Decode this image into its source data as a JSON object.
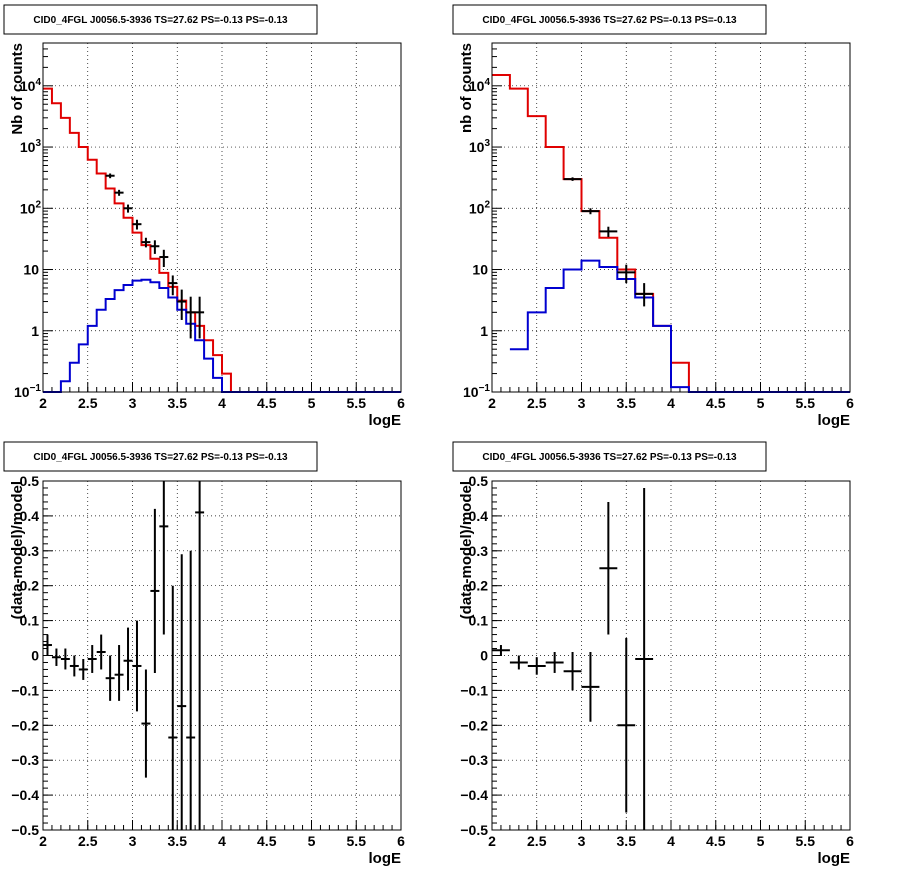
{
  "chart_data": [
    {
      "type": "line",
      "title": "CID0_4FGL J0056.5-3936 TS=27.62 PS=-0.13 PS=-0.13",
      "xlabel": "logE",
      "ylabel": "Nb of counts",
      "xlim": [
        2,
        6
      ],
      "ylim": [
        0.1,
        50000
      ],
      "yscale": "log",
      "grid": true,
      "xticks": [
        "2",
        "2.5",
        "3",
        "3.5",
        "4",
        "4.5",
        "5",
        "5.5",
        "6"
      ],
      "yticks": [
        {
          "v": 0.1,
          "t": "10",
          "sup": "−1"
        },
        {
          "v": 1,
          "t": "1",
          "sup": ""
        },
        {
          "v": 10,
          "t": "10",
          "sup": ""
        },
        {
          "v": 100,
          "t": "10",
          "sup": "2"
        },
        {
          "v": 1000,
          "t": "10",
          "sup": "3"
        },
        {
          "v": 10000,
          "t": "10",
          "sup": "4"
        }
      ],
      "series": [
        {
          "style": "step",
          "color": "#e00000",
          "edges": [
            2.0,
            2.1,
            2.2,
            2.3,
            2.4,
            2.5,
            2.6,
            2.7,
            2.8,
            2.9,
            3.0,
            3.1,
            3.2,
            3.3,
            3.4,
            3.5,
            3.6,
            3.7,
            3.8,
            3.9,
            4.0,
            4.1,
            4.2
          ],
          "values": [
            9000,
            5200,
            3000,
            1700,
            1000,
            620,
            370,
            210,
            120,
            70,
            40,
            25,
            15,
            8.8,
            5.2,
            3.1,
            2.0,
            1.2,
            0.7,
            0.4,
            0.2,
            0.1
          ]
        },
        {
          "style": "step",
          "color": "#0000d0",
          "edges": [
            2.0,
            2.1,
            2.2,
            2.3,
            2.4,
            2.5,
            2.6,
            2.7,
            2.8,
            2.9,
            3.0,
            3.1,
            3.2,
            3.3,
            3.4,
            3.5,
            3.6,
            3.7,
            3.8,
            3.9,
            4.0,
            4.1,
            4.2,
            6.0
          ],
          "values": [
            0.03,
            0.1,
            0.15,
            0.3,
            0.6,
            1.2,
            2.2,
            3.3,
            4.6,
            5.6,
            6.6,
            6.8,
            6.2,
            5.0,
            3.5,
            2.2,
            1.3,
            0.7,
            0.35,
            0.17,
            0.1,
            0.1,
            0.1
          ]
        },
        {
          "style": "errorbar",
          "color": "#000000",
          "x": [
            2.75,
            2.85,
            2.95,
            3.05,
            3.15,
            3.25,
            3.35,
            3.45,
            3.55,
            3.65,
            3.75
          ],
          "y": [
            340,
            180,
            100,
            55,
            28,
            24,
            16,
            6,
            3,
            2,
            2
          ],
          "xerr": [
            0.05,
            0.05,
            0.05,
            0.05,
            0.05,
            0.05,
            0.05,
            0.05,
            0.05,
            0.05,
            0.05
          ],
          "ylo": [
            310,
            160,
            85,
            45,
            23,
            18,
            11,
            3.8,
            1.5,
            0.75,
            0.75
          ],
          "yhi": [
            370,
            200,
            115,
            65,
            33,
            30,
            21,
            8,
            4.7,
            3.6,
            3.6
          ]
        }
      ]
    },
    {
      "type": "line",
      "title": "CID0_4FGL J0056.5-3936 TS=27.62 PS=-0.13 PS=-0.13",
      "xlabel": "logE",
      "ylabel": "nb of counts",
      "xlim": [
        2,
        6
      ],
      "ylim": [
        0.1,
        50000
      ],
      "yscale": "log",
      "grid": true,
      "xticks": [
        "2",
        "2.5",
        "3",
        "3.5",
        "4",
        "4.5",
        "5",
        "5.5",
        "6"
      ],
      "yticks": [
        {
          "v": 0.1,
          "t": "10",
          "sup": "−1"
        },
        {
          "v": 1,
          "t": "1",
          "sup": ""
        },
        {
          "v": 10,
          "t": "10",
          "sup": ""
        },
        {
          "v": 100,
          "t": "10",
          "sup": "2"
        },
        {
          "v": 1000,
          "t": "10",
          "sup": "3"
        },
        {
          "v": 10000,
          "t": "10",
          "sup": "4"
        }
      ],
      "series": [
        {
          "style": "step",
          "color": "#e00000",
          "edges": [
            2.0,
            2.2,
            2.4,
            2.6,
            2.8,
            3.0,
            3.2,
            3.4,
            3.6,
            3.8,
            4.0,
            4.2
          ],
          "values": [
            15000,
            9000,
            3200,
            1000,
            300,
            90,
            33,
            10,
            4,
            1.2,
            0.3
          ]
        },
        {
          "style": "step",
          "color": "#0000d0",
          "edges": [
            2.2,
            2.4,
            2.6,
            2.8,
            3.0,
            3.2,
            3.4,
            3.6,
            3.8,
            4.0,
            4.2,
            6.0
          ],
          "values": [
            0.5,
            2,
            5,
            10,
            14,
            11,
            7,
            3.5,
            1.2,
            0.12,
            0.1
          ]
        },
        {
          "style": "errorbar",
          "color": "#000000",
          "x": [
            2.9,
            3.1,
            3.3,
            3.5,
            3.7
          ],
          "y": [
            300,
            90,
            42,
            9,
            4
          ],
          "xerr": [
            0.1,
            0.1,
            0.1,
            0.1,
            0.1
          ],
          "ylo": [
            280,
            80,
            34,
            6,
            2.5
          ],
          "yhi": [
            320,
            100,
            50,
            12,
            6
          ]
        }
      ]
    },
    {
      "type": "scatter",
      "title": "CID0_4FGL J0056.5-3936 TS=27.62 PS=-0.13 PS=-0.13",
      "xlabel": "logE",
      "ylabel": "(data-model)/model",
      "xlim": [
        2,
        6
      ],
      "ylim": [
        -0.5,
        0.5
      ],
      "grid": true,
      "xticks": [
        "2",
        "2.5",
        "3",
        "3.5",
        "4",
        "4.5",
        "5",
        "5.5",
        "6"
      ],
      "yticks": [
        {
          "v": -0.5,
          "t": "−0.5"
        },
        {
          "v": -0.4,
          "t": "−0.4"
        },
        {
          "v": -0.3,
          "t": "−0.3"
        },
        {
          "v": -0.2,
          "t": "−0.2"
        },
        {
          "v": -0.1,
          "t": "−0.1"
        },
        {
          "v": 0,
          "t": "0"
        },
        {
          "v": 0.1,
          "t": "0.1"
        },
        {
          "v": 0.2,
          "t": "0.2"
        },
        {
          "v": 0.3,
          "t": "0.3"
        },
        {
          "v": 0.4,
          "t": "0.4"
        },
        {
          "v": 0.5,
          "t": "0.5"
        }
      ],
      "series": [
        {
          "style": "errorbar",
          "color": "#000000",
          "x": [
            2.05,
            2.15,
            2.25,
            2.35,
            2.45,
            2.55,
            2.65,
            2.75,
            2.85,
            2.95,
            3.05,
            3.15,
            3.25,
            3.35,
            3.45,
            3.55,
            3.65,
            3.75
          ],
          "y": [
            0.03,
            -0.005,
            -0.01,
            -0.03,
            -0.04,
            -0.01,
            0.01,
            -0.065,
            -0.055,
            -0.015,
            -0.03,
            -0.195,
            0.185,
            0.37,
            -0.235,
            -0.145,
            -0.235,
            0.41
          ],
          "xerr": [
            0.05,
            0.05,
            0.05,
            0.05,
            0.05,
            0.05,
            0.05,
            0.05,
            0.05,
            0.05,
            0.05,
            0.05,
            0.05,
            0.05,
            0.05,
            0.05,
            0.05,
            0.05
          ],
          "ylo": [
            0.0,
            -0.03,
            -0.04,
            -0.06,
            -0.07,
            -0.05,
            -0.04,
            -0.13,
            -0.13,
            -0.1,
            -0.16,
            -0.35,
            -0.05,
            0.06,
            -0.55,
            -0.55,
            -0.55,
            -0.55
          ],
          "yhi": [
            0.06,
            0.02,
            0.02,
            0.0,
            -0.01,
            0.03,
            0.06,
            0.0,
            0.03,
            0.08,
            0.1,
            -0.04,
            0.42,
            0.55,
            0.2,
            0.29,
            0.3,
            0.55
          ]
        }
      ]
    },
    {
      "type": "scatter",
      "title": "CID0_4FGL J0056.5-3936 TS=27.62 PS=-0.13 PS=-0.13",
      "xlabel": "logE",
      "ylabel": "(data-model)/model",
      "xlim": [
        2,
        6
      ],
      "ylim": [
        -0.5,
        0.5
      ],
      "grid": true,
      "xticks": [
        "2",
        "2.5",
        "3",
        "3.5",
        "4",
        "4.5",
        "5",
        "5.5",
        "6"
      ],
      "yticks": [
        {
          "v": -0.5,
          "t": "−0.5"
        },
        {
          "v": -0.4,
          "t": "−0.4"
        },
        {
          "v": -0.3,
          "t": "−0.3"
        },
        {
          "v": -0.2,
          "t": "−0.2"
        },
        {
          "v": -0.1,
          "t": "−0.1"
        },
        {
          "v": 0,
          "t": "0"
        },
        {
          "v": 0.1,
          "t": "0.1"
        },
        {
          "v": 0.2,
          "t": "0.2"
        },
        {
          "v": 0.3,
          "t": "0.3"
        },
        {
          "v": 0.4,
          "t": "0.4"
        },
        {
          "v": 0.5,
          "t": "0.5"
        }
      ],
      "series": [
        {
          "style": "errorbar",
          "color": "#000000",
          "x": [
            2.1,
            2.3,
            2.5,
            2.7,
            2.9,
            3.1,
            3.3,
            3.5,
            3.7
          ],
          "y": [
            0.015,
            -0.02,
            -0.03,
            -0.02,
            -0.045,
            -0.09,
            0.25,
            -0.2,
            -0.01
          ],
          "xerr": [
            0.1,
            0.1,
            0.1,
            0.1,
            0.1,
            0.1,
            0.1,
            0.1,
            0.1
          ],
          "ylo": [
            0.0,
            -0.04,
            -0.055,
            -0.05,
            -0.1,
            -0.19,
            0.06,
            -0.45,
            -0.55
          ],
          "yhi": [
            0.03,
            0.0,
            -0.005,
            0.01,
            0.01,
            0.01,
            0.44,
            0.05,
            0.48
          ]
        }
      ]
    }
  ]
}
